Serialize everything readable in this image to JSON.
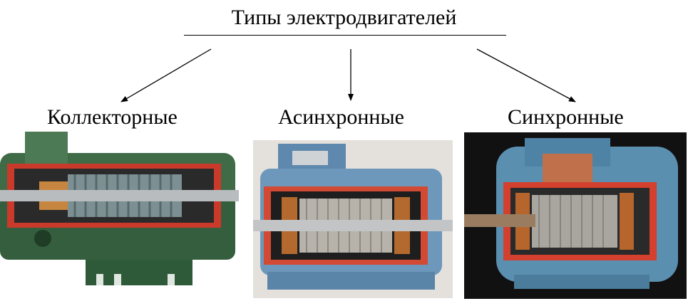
{
  "title": "Типы электродвигателей",
  "types": [
    {
      "label": "Коллекторные"
    },
    {
      "label": "Асинхронные"
    },
    {
      "label": "Синхронные"
    }
  ]
}
